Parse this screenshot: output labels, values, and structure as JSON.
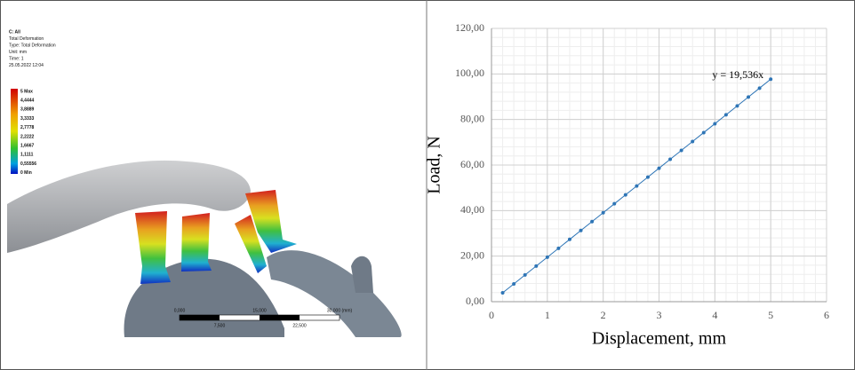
{
  "fea_image": {
    "header": [
      "C: All",
      "Total Deformation",
      "Type: Total Deformation",
      "Unit: mm",
      "Time: 1",
      "25.05.2022 12:04"
    ],
    "legend": [
      "5 Max",
      "4,4444",
      "3,8889",
      "3,3333",
      "2,7778",
      "2,2222",
      "1,6667",
      "1,1111",
      "0,55556",
      "0 Min"
    ],
    "scale_top": [
      "0,000",
      "15,000",
      "30,000 (mm)"
    ],
    "scale_bottom": [
      "7,500",
      "22,500"
    ]
  },
  "chart_data": {
    "type": "scatter",
    "x_label": "Displacement, mm",
    "y_label": "Load, N",
    "annotation": "y = 19,536x",
    "series": [
      {
        "color": "#2e75b6",
        "x": [
          0.2,
          0.4,
          0.6,
          0.8,
          1.0,
          1.2,
          1.4,
          1.6,
          1.8,
          2.0,
          2.2,
          2.4,
          2.6,
          2.8,
          3.0,
          3.2,
          3.4,
          3.6,
          3.8,
          4.0,
          4.2,
          4.4,
          4.6,
          4.8,
          5.0
        ],
        "values": [
          3.91,
          7.81,
          11.72,
          15.63,
          19.54,
          23.44,
          27.35,
          31.26,
          35.16,
          39.07,
          42.98,
          46.89,
          50.79,
          54.7,
          58.61,
          62.52,
          66.42,
          70.33,
          74.24,
          78.14,
          82.05,
          85.96,
          89.87,
          93.77,
          97.68
        ]
      }
    ],
    "xlim": [
      0,
      6
    ],
    "xticks": [
      0,
      1,
      2,
      3,
      4,
      5,
      6
    ],
    "ylim": [
      0,
      120
    ],
    "yticks": [
      {
        "value": 0,
        "label": "0,00"
      },
      {
        "value": 20,
        "label": "20,00"
      },
      {
        "value": 40,
        "label": "40,00"
      },
      {
        "value": 60,
        "label": "60,00"
      },
      {
        "value": 80,
        "label": "80,00"
      },
      {
        "value": 100,
        "label": "100,00"
      },
      {
        "value": 120,
        "label": "120,00"
      }
    ],
    "grid": true,
    "connect": true
  }
}
